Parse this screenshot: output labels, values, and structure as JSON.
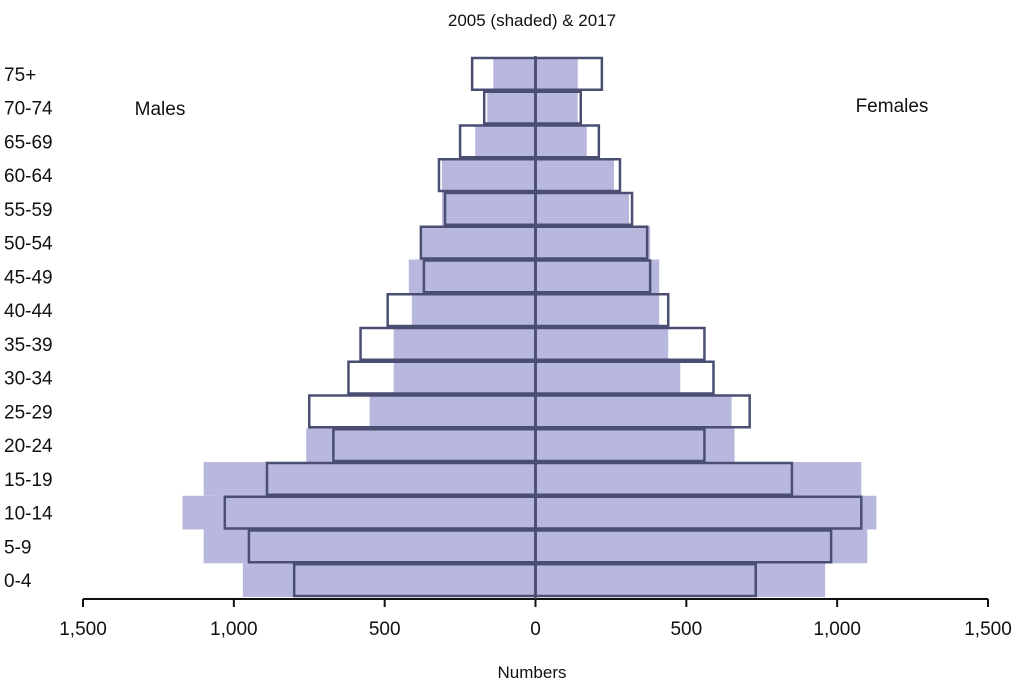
{
  "chart_data": {
    "type": "bar",
    "orientation": "horizontal",
    "layout": "population-pyramid",
    "title": "2005 (shaded) & 2017",
    "xlabel": "Numbers",
    "left_label": "Males",
    "right_label": "Females",
    "categories": [
      "0-4",
      "5-9",
      "10-14",
      "15-19",
      "20-24",
      "25-29",
      "30-34",
      "35-39",
      "40-44",
      "45-49",
      "50-54",
      "55-59",
      "60-64",
      "65-69",
      "70-74",
      "75+"
    ],
    "xlim": [
      -1500,
      1500
    ],
    "x_ticks": [
      -1500,
      -1000,
      -500,
      0,
      500,
      1000,
      1500
    ],
    "x_tick_labels": [
      "1,500",
      "1,000",
      "500",
      "0",
      "500",
      "1,000",
      "1,500"
    ],
    "series": [
      {
        "name": "2005",
        "style": "shaded",
        "color": "#b8b8de",
        "males": [
          970,
          1100,
          1170,
          1100,
          760,
          550,
          470,
          470,
          410,
          420,
          380,
          310,
          310,
          200,
          160,
          140
        ],
        "females": [
          960,
          1100,
          1130,
          1080,
          660,
          650,
          480,
          440,
          410,
          410,
          380,
          310,
          260,
          170,
          140,
          140
        ]
      },
      {
        "name": "2017",
        "style": "outline",
        "color": "#4a4e73",
        "males": [
          800,
          950,
          1030,
          890,
          670,
          750,
          620,
          580,
          490,
          370,
          380,
          300,
          320,
          250,
          170,
          210
        ],
        "females": [
          730,
          980,
          1080,
          850,
          560,
          710,
          590,
          560,
          440,
          380,
          370,
          320,
          280,
          210,
          150,
          220
        ]
      }
    ]
  }
}
